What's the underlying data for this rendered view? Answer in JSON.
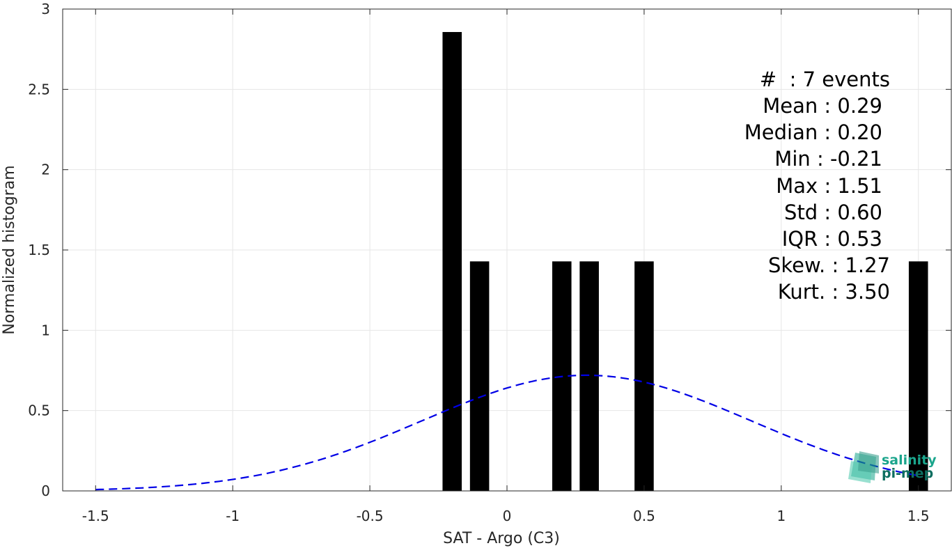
{
  "chart_data": {
    "type": "bar",
    "xlabel": "SAT - Argo (C3)",
    "ylabel": "Normalized histogram",
    "xlim": [
      -1.62,
      1.62
    ],
    "ylim": [
      0,
      3
    ],
    "xticks": [
      -1.5,
      -1,
      -0.5,
      0,
      0.5,
      1,
      1.5
    ],
    "xtick_labels": [
      "-1.5",
      "-1",
      "-0.5",
      "0",
      "0.5",
      "1",
      "1.5"
    ],
    "yticks": [
      0,
      0.5,
      1,
      1.5,
      2,
      2.5,
      3
    ],
    "ytick_labels": [
      "0",
      "0.5",
      "1",
      "1.5",
      "2",
      "2.5",
      "3"
    ],
    "grid": true,
    "bar_color": "#000000",
    "bars": [
      {
        "center": -0.2,
        "width": 0.07,
        "value": 2.857
      },
      {
        "center": -0.1,
        "width": 0.07,
        "value": 1.429
      },
      {
        "center": 0.2,
        "width": 0.07,
        "value": 1.429
      },
      {
        "center": 0.3,
        "width": 0.07,
        "value": 1.429
      },
      {
        "center": 0.5,
        "width": 0.07,
        "value": 1.429
      },
      {
        "center": 1.5,
        "width": 0.07,
        "value": 1.429
      }
    ],
    "fit_curve": {
      "style": "dashed",
      "color": "#0000e6",
      "mean": 0.29,
      "std": 0.6,
      "peak": 0.72,
      "x_range": [
        -1.5,
        1.5
      ]
    },
    "stats_lines": [
      "#  : 7 events",
      "Mean : 0.29",
      "Median : 0.20",
      "Min : -0.21",
      "Max : 1.51",
      "Std : 0.60",
      "IQR : 0.53",
      "Skew. : 1.27",
      "Kurt. : 3.50"
    ]
  },
  "logo": {
    "line1": "salinity",
    "line2": "pi-mep",
    "color": "#1aa58c"
  }
}
